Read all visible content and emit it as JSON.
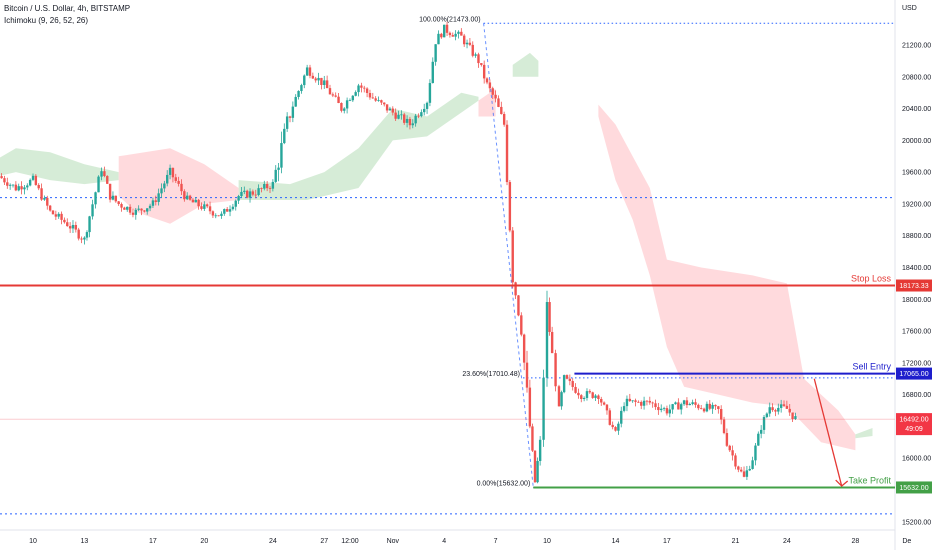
{
  "header": {
    "title": "Bitcoin / U.S. Dollar, 4h, BITSTAMP",
    "indicator": "Ichimoku (9, 26, 52, 26)"
  },
  "currency": "USD",
  "chart_data": {
    "type": "candlestick",
    "y_ticks": [
      15200,
      15600,
      16000,
      16400,
      16800,
      17200,
      17600,
      18000,
      18400,
      18800,
      19200,
      19600,
      20000,
      20400,
      20800,
      21200
    ],
    "y_tick_labels": [
      "15200.00",
      "15600.00",
      "16000.00",
      "16400.00",
      "16800.00",
      "17200.00",
      "17600.00",
      "18000.00",
      "18400.00",
      "18800.00",
      "19200.00",
      "19600.00",
      "20000.00",
      "20400.00",
      "20800.00",
      "21200.00"
    ],
    "ylim": [
      15080,
      21600
    ],
    "x_ticks": [
      {
        "label": "10",
        "day": 10
      },
      {
        "label": "13",
        "day": 13
      },
      {
        "label": "17",
        "day": 17
      },
      {
        "label": "20",
        "day": 20
      },
      {
        "label": "24",
        "day": 24
      },
      {
        "label": "27",
        "day": 27
      },
      {
        "label": "12:00",
        "day": 28.5
      },
      {
        "label": "Nov",
        "day": 31
      },
      {
        "label": "4",
        "day": 34
      },
      {
        "label": "7",
        "day": 37
      },
      {
        "label": "10",
        "day": 40
      },
      {
        "label": "14",
        "day": 44
      },
      {
        "label": "17",
        "day": 47
      },
      {
        "label": "21",
        "day": 51
      },
      {
        "label": "24",
        "day": 54
      },
      {
        "label": "28",
        "day": 58
      },
      {
        "label": "De",
        "day": 61
      }
    ],
    "price_path": [
      [
        8,
        19550
      ],
      [
        9,
        19400
      ],
      [
        10,
        19500
      ],
      [
        11,
        19100
      ],
      [
        12,
        18950
      ],
      [
        13,
        18750
      ],
      [
        13.3,
        19050
      ],
      [
        14,
        19650
      ],
      [
        14.5,
        19300
      ],
      [
        15,
        19200
      ],
      [
        16,
        19100
      ],
      [
        17,
        19200
      ],
      [
        18,
        19600
      ],
      [
        19,
        19250
      ],
      [
        20,
        19150
      ],
      [
        21,
        19050
      ],
      [
        22,
        19300
      ],
      [
        23,
        19350
      ],
      [
        24,
        19450
      ],
      [
        25,
        20350
      ],
      [
        26,
        20900
      ],
      [
        27,
        20700
      ],
      [
        28,
        20400
      ],
      [
        29,
        20700
      ],
      [
        30,
        20500
      ],
      [
        31,
        20350
      ],
      [
        32,
        20200
      ],
      [
        33,
        20500
      ],
      [
        33.5,
        21250
      ],
      [
        34,
        21400
      ],
      [
        35,
        21300
      ],
      [
        36,
        21000
      ],
      [
        36.5,
        20700
      ],
      [
        37,
        20500
      ],
      [
        37.5,
        20200
      ],
      [
        38,
        18300
      ],
      [
        38.5,
        17600
      ],
      [
        39,
        16400
      ],
      [
        39.3,
        15700
      ],
      [
        39.6,
        16200
      ],
      [
        40,
        17900
      ],
      [
        40.3,
        17300
      ],
      [
        40.7,
        16600
      ],
      [
        41,
        17000
      ],
      [
        42,
        16800
      ],
      [
        43,
        16800
      ],
      [
        44,
        16300
      ],
      [
        44.5,
        16700
      ],
      [
        45,
        16700
      ],
      [
        46,
        16700
      ],
      [
        47,
        16600
      ],
      [
        48,
        16700
      ],
      [
        49,
        16650
      ],
      [
        50,
        16600
      ],
      [
        50.5,
        16200
      ],
      [
        51,
        15950
      ],
      [
        51.5,
        15750
      ],
      [
        52,
        16000
      ],
      [
        52.5,
        16400
      ],
      [
        53,
        16650
      ],
      [
        54,
        16620
      ],
      [
        54.5,
        16500
      ]
    ],
    "fib_levels": [
      {
        "label": "100.00%(21473.00)",
        "value": 21473
      },
      {
        "label": "23.60%(17010.48)",
        "value": 17010.48
      },
      {
        "label": "0.00%(15632.00)",
        "value": 15632
      }
    ],
    "dotted_levels": [
      19280,
      15300
    ],
    "key_levels": [
      {
        "name": "Stop Loss",
        "value": 18173.33,
        "tag": "18173.33",
        "color": "#e53935"
      },
      {
        "name": "Sell Entry",
        "value": 17065.0,
        "tag": "17065.00",
        "color": "#1e1ecc"
      },
      {
        "name": "Take Profit",
        "value": 15632.0,
        "tag": "15632.00",
        "color": "#43a047"
      }
    ],
    "current_price": {
      "tag": "16492.00",
      "countdown": "49:09",
      "value": 16492,
      "color": "#f23645"
    }
  }
}
